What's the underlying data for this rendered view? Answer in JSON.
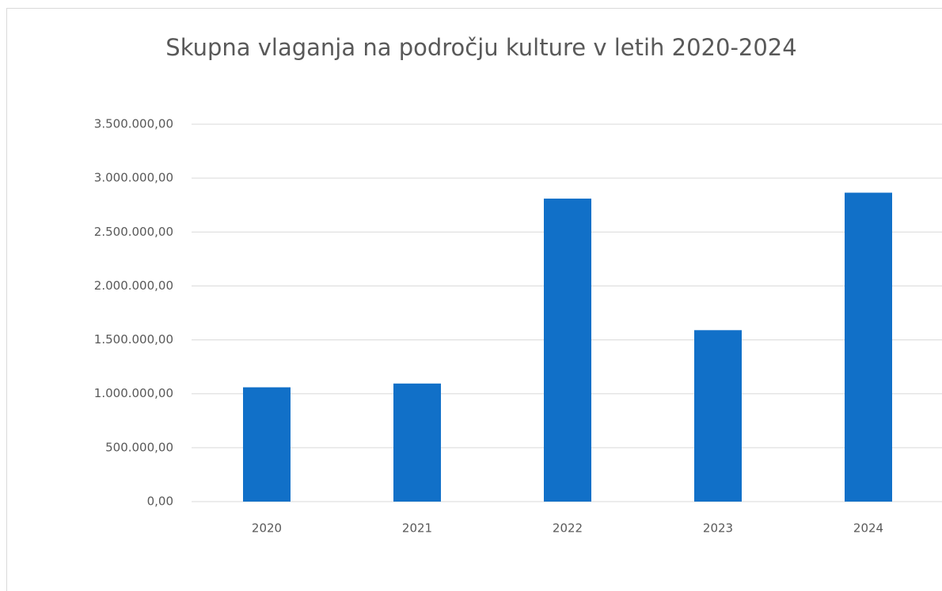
{
  "chart_data": {
    "type": "bar",
    "title": "Skupna vlaganja na področju kulture v letih 2020-2024",
    "categories": [
      "2020",
      "2021",
      "2022",
      "2023",
      "2024"
    ],
    "values": [
      1060000,
      1095000,
      2810000,
      1590000,
      2865000
    ],
    "color": "#1170c8",
    "ylim": [
      0,
      3500000
    ],
    "yticks": [
      {
        "value": 0,
        "label": "0,00"
      },
      {
        "value": 500000,
        "label": "500.000,00"
      },
      {
        "value": 1000000,
        "label": "1.000.000,00"
      },
      {
        "value": 1500000,
        "label": "1.500.000,00"
      },
      {
        "value": 2000000,
        "label": "2.000.000,00"
      },
      {
        "value": 2500000,
        "label": "2.500.000,00"
      },
      {
        "value": 3000000,
        "label": "3.000.000,00"
      },
      {
        "value": 3500000,
        "label": "3.500.000,00"
      }
    ],
    "grid": true
  }
}
